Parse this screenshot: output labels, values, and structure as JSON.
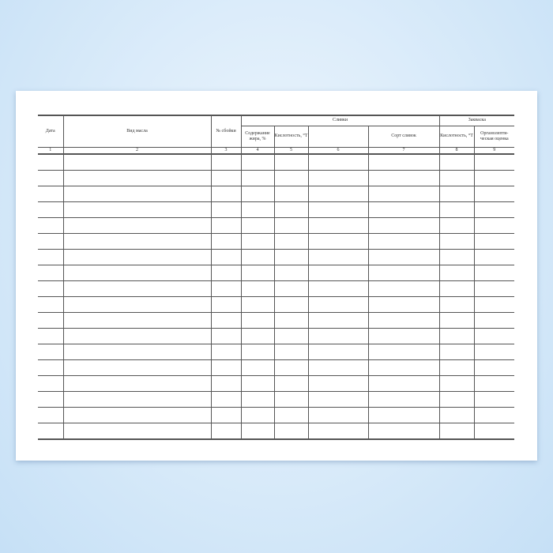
{
  "header": {
    "date": "Дата",
    "butter_type": "Вид масла",
    "churn_no": "№ сбойки",
    "cream_group": "Сливки",
    "fat_content": "Содержание жира, %",
    "cream_acidity": "Кислотность, °Т",
    "col6": "",
    "cream_grade": "Сорт сливок",
    "starter_group": "Закваска",
    "starter_acidity": "Кислотность, °Т",
    "organoleptic": "Органолепти-ческая оценка"
  },
  "column_numbers": [
    "1",
    "2",
    "3",
    "4",
    "5",
    "6",
    "7",
    "8",
    "9"
  ],
  "empty_rows": 18
}
